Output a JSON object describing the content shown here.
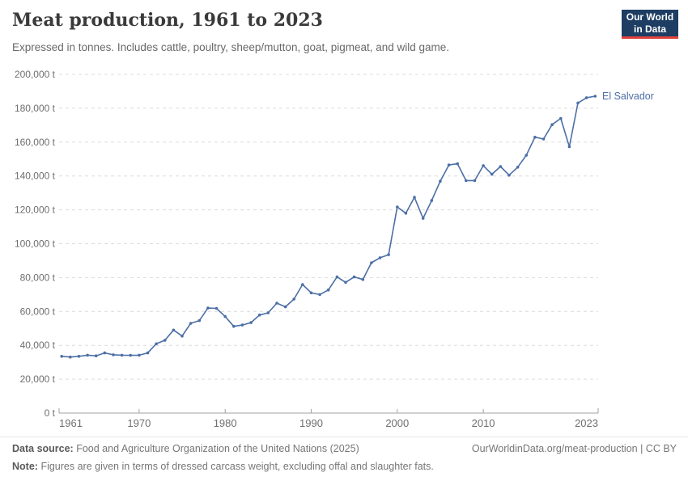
{
  "header": {
    "title": "Meat production, 1961 to 2023",
    "subtitle": "Expressed in tonnes. Includes cattle, poultry, sheep/mutton, goat, pigmeat, and wild game.",
    "logo": {
      "line1": "Our World",
      "line2": "in Data",
      "bg_color": "#1d3d63",
      "accent_color": "#e0413c"
    }
  },
  "chart_data": {
    "type": "line",
    "title": "Meat production, 1961 to 2023",
    "entity": "El Salvador",
    "unit": "t",
    "xlabel": "",
    "ylabel": "",
    "ylim": [
      0,
      200000
    ],
    "grid": "horizontal-dashed",
    "legend_position": "end-of-line-label",
    "line_color": "#4c6fa5",
    "axis_color": "#a1a1a1",
    "gridline_color": "#dcdcdc",
    "tick_label_color": "#6e6e6e",
    "ytick_suffix": " t",
    "yticks": [
      0,
      20000,
      40000,
      60000,
      80000,
      100000,
      120000,
      140000,
      160000,
      180000,
      200000
    ],
    "xticks": [
      1961,
      1970,
      1980,
      1990,
      2000,
      2010,
      2023
    ],
    "x": [
      1961,
      1962,
      1963,
      1964,
      1965,
      1966,
      1967,
      1968,
      1969,
      1970,
      1971,
      1972,
      1973,
      1974,
      1975,
      1976,
      1977,
      1978,
      1979,
      1980,
      1981,
      1982,
      1983,
      1984,
      1985,
      1986,
      1987,
      1988,
      1989,
      1990,
      1991,
      1992,
      1993,
      1994,
      1995,
      1996,
      1997,
      1998,
      1999,
      2000,
      2001,
      2002,
      2003,
      2004,
      2005,
      2006,
      2007,
      2008,
      2009,
      2010,
      2011,
      2012,
      2013,
      2014,
      2015,
      2016,
      2017,
      2018,
      2019,
      2020,
      2021,
      2022,
      2023
    ],
    "values": [
      33500,
      33100,
      33500,
      34200,
      33800,
      35500,
      34400,
      34200,
      34100,
      34200,
      35500,
      40900,
      43000,
      49000,
      45500,
      53000,
      54600,
      62000,
      61800,
      57000,
      51200,
      52000,
      53400,
      57900,
      59200,
      64900,
      62700,
      67300,
      75900,
      71000,
      70000,
      72700,
      80400,
      77200,
      80400,
      78900,
      88800,
      91700,
      93500,
      121700,
      118000,
      127400,
      115000,
      125500,
      136900,
      146500,
      147200,
      137300,
      137300,
      146100,
      141000,
      145600,
      140500,
      145200,
      152200,
      162900,
      161800,
      170300,
      174000,
      157300,
      183100,
      186200,
      187100
    ]
  },
  "footer": {
    "datasource_label": "Data source:",
    "datasource_text": "Food and Agriculture Organization of the United Nations (2025)",
    "note_label": "Note:",
    "note_text": "Figures are given in terms of dressed carcass weight, excluding offal and slaughter fats.",
    "link": "OurWorldinData.org/meat-production | CC BY"
  }
}
